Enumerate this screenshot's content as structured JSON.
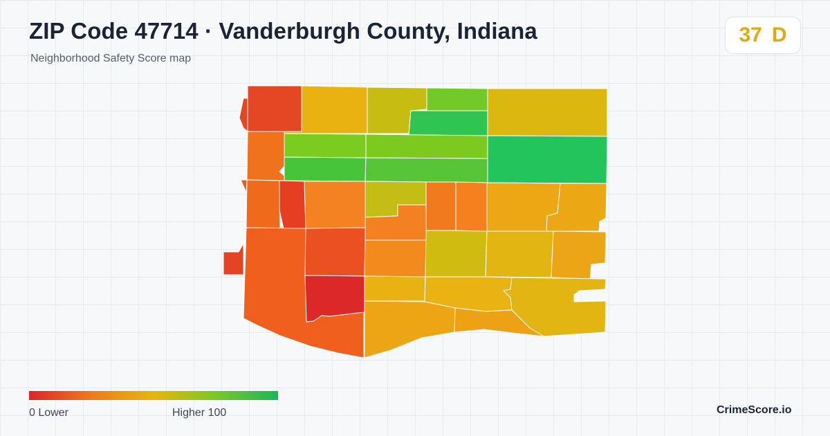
{
  "header": {
    "title": "ZIP Code 47714 · Vanderburgh County, Indiana",
    "subtitle": "Neighborhood Safety Score map"
  },
  "score": {
    "value": "37",
    "grade": "D",
    "color": "#e0a915"
  },
  "legend": {
    "min_label": "0  Lower",
    "max_label": "Higher  100",
    "gradient_colors": [
      "#d9262a",
      "#f07a1a",
      "#e8b412",
      "#7ac824",
      "#18b85a"
    ]
  },
  "brand": "CrimeScore.io",
  "map": {
    "areas": [
      {
        "id": "r1a",
        "color": "#e54623"
      },
      {
        "id": "r1b",
        "color": "#e8b310"
      },
      {
        "id": "r1c",
        "color": "#c7bd12"
      },
      {
        "id": "r1d",
        "color": "#74c92a"
      },
      {
        "id": "r1e",
        "color": "#30c451"
      },
      {
        "id": "r1f",
        "color": "#dab810"
      },
      {
        "id": "r2a",
        "color": "#f0721c"
      },
      {
        "id": "r2b",
        "color": "#7ccb21"
      },
      {
        "id": "r2c",
        "color": "#48c43a"
      },
      {
        "id": "r2d",
        "color": "#7cc91f"
      },
      {
        "id": "r2e",
        "color": "#58c538"
      },
      {
        "id": "r2f",
        "color": "#22c45b"
      },
      {
        "id": "r3a",
        "color": "#f06a1c"
      },
      {
        "id": "r3b",
        "color": "#e53e22"
      },
      {
        "id": "r3c",
        "color": "#f58220"
      },
      {
        "id": "r3d",
        "color": "#c3bd16"
      },
      {
        "id": "r3e",
        "color": "#f48120"
      },
      {
        "id": "r3f",
        "color": "#f07a1c"
      },
      {
        "id": "r3g",
        "color": "#f5801e"
      },
      {
        "id": "r3h",
        "color": "#eda715"
      },
      {
        "id": "r3i",
        "color": "#eca714"
      },
      {
        "id": "r4a",
        "color": "#f05f1d"
      },
      {
        "id": "r4b",
        "color": "#ea5020"
      },
      {
        "id": "r4c",
        "color": "#f28a1e"
      },
      {
        "id": "r4d",
        "color": "#e8b312"
      },
      {
        "id": "r4e",
        "color": "#d0bb10"
      },
      {
        "id": "r4f",
        "color": "#e3b512"
      },
      {
        "id": "r4g",
        "color": "#eca516"
      },
      {
        "id": "r5a",
        "color": "#dc2828"
      },
      {
        "id": "r5b",
        "color": "#e9b313"
      },
      {
        "id": "r5c",
        "color": "#eda515"
      },
      {
        "id": "r5d",
        "color": "#e3b512"
      },
      {
        "id": "r6a",
        "color": "#ee5c20"
      },
      {
        "id": "r6b",
        "color": "#f7881b"
      },
      {
        "id": "r6c",
        "color": "#eda216"
      },
      {
        "id": "w1",
        "color": "#e24826"
      },
      {
        "id": "w2",
        "color": "#e44424"
      }
    ]
  }
}
